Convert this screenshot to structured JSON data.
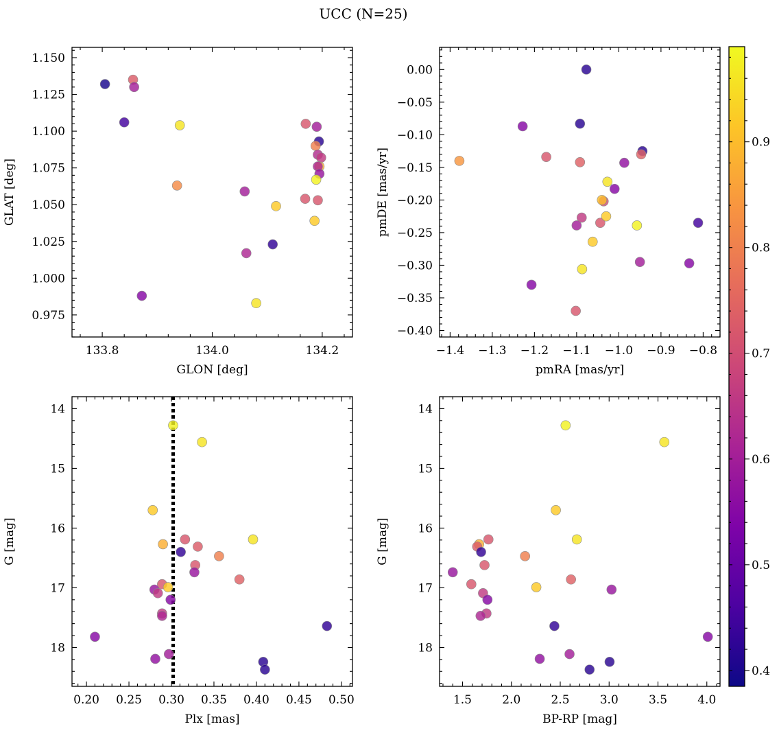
{
  "figure": {
    "title": "UCC (N=25)",
    "colorbar": {
      "colormap": "plasma",
      "range": [
        0.385,
        0.99
      ],
      "ticks": [
        "0.4",
        "0.5",
        "0.6",
        "0.7",
        "0.8",
        "0.9"
      ],
      "tick_values": [
        0.4,
        0.5,
        0.6,
        0.7,
        0.8,
        0.9
      ]
    }
  },
  "chart_data": [
    {
      "type": "scatter",
      "xlabel": "GLON [deg]",
      "ylabel": "GLAT [deg]",
      "xlim": [
        133.745,
        134.255
      ],
      "ylim": [
        0.96,
        1.157
      ],
      "xticks": [
        "133.8",
        "134.0",
        "134.2"
      ],
      "xtick_values": [
        133.8,
        134.0,
        134.2
      ],
      "yticks": [
        "0.975",
        "1.000",
        "1.025",
        "1.050",
        "1.075",
        "1.100",
        "1.125",
        "1.150"
      ],
      "ytick_values": [
        0.975,
        1.0,
        1.025,
        1.05,
        1.075,
        1.1,
        1.125,
        1.15
      ],
      "invert_y": false,
      "points": [
        {
          "x": 133.805,
          "y": 1.132,
          "c": 0.4
        },
        {
          "x": 133.856,
          "y": 1.135,
          "c": 0.73
        },
        {
          "x": 133.858,
          "y": 1.13,
          "c": 0.6
        },
        {
          "x": 133.84,
          "y": 1.106,
          "c": 0.45
        },
        {
          "x": 133.941,
          "y": 1.104,
          "c": 0.96
        },
        {
          "x": 133.936,
          "y": 1.063,
          "c": 0.82
        },
        {
          "x": 133.872,
          "y": 0.988,
          "c": 0.55
        },
        {
          "x": 134.059,
          "y": 1.059,
          "c": 0.6
        },
        {
          "x": 134.062,
          "y": 1.017,
          "c": 0.62
        },
        {
          "x": 134.11,
          "y": 1.023,
          "c": 0.43
        },
        {
          "x": 134.116,
          "y": 1.049,
          "c": 0.92
        },
        {
          "x": 134.08,
          "y": 0.983,
          "c": 0.96
        },
        {
          "x": 134.17,
          "y": 1.105,
          "c": 0.72
        },
        {
          "x": 134.19,
          "y": 1.103,
          "c": 0.6
        },
        {
          "x": 134.194,
          "y": 1.093,
          "c": 0.42
        },
        {
          "x": 134.188,
          "y": 1.09,
          "c": 0.8
        },
        {
          "x": 134.192,
          "y": 1.084,
          "c": 0.63
        },
        {
          "x": 134.198,
          "y": 1.082,
          "c": 0.66
        },
        {
          "x": 134.195,
          "y": 1.076,
          "c": 0.88
        },
        {
          "x": 134.192,
          "y": 1.076,
          "c": 0.62
        },
        {
          "x": 134.195,
          "y": 1.071,
          "c": 0.58
        },
        {
          "x": 134.189,
          "y": 1.067,
          "c": 0.98
        },
        {
          "x": 134.169,
          "y": 1.054,
          "c": 0.72
        },
        {
          "x": 134.192,
          "y": 1.053,
          "c": 0.72
        },
        {
          "x": 134.186,
          "y": 1.039,
          "c": 0.92
        }
      ]
    },
    {
      "type": "scatter",
      "xlabel": "pmRA [mas/yr]",
      "ylabel": "pmDE [mas/yr]",
      "xlim": [
        -1.425,
        -0.76
      ],
      "ylim": [
        -0.41,
        0.034
      ],
      "xticks": [
        "−1.4",
        "−1.3",
        "−1.2",
        "−1.1",
        "−1.0",
        "−0.9",
        "−0.8"
      ],
      "xtick_values": [
        -1.4,
        -1.3,
        -1.2,
        -1.1,
        -1.0,
        -0.9,
        -0.8
      ],
      "yticks": [
        "0.00",
        "−0.05",
        "−0.10",
        "−0.15",
        "−0.20",
        "−0.25",
        "−0.30",
        "−0.35",
        "−0.40"
      ],
      "ytick_values": [
        0.0,
        -0.05,
        -0.1,
        -0.15,
        -0.2,
        -0.25,
        -0.3,
        -0.35,
        -0.4
      ],
      "invert_y": false,
      "points": [
        {
          "x": -1.077,
          "y": 0.0,
          "c": 0.42
        },
        {
          "x": -1.228,
          "y": -0.087,
          "c": 0.55
        },
        {
          "x": -1.092,
          "y": -0.083,
          "c": 0.42
        },
        {
          "x": -0.944,
          "y": -0.125,
          "c": 0.42
        },
        {
          "x": -0.947,
          "y": -0.13,
          "c": 0.74
        },
        {
          "x": -1.378,
          "y": -0.14,
          "c": 0.84
        },
        {
          "x": -1.172,
          "y": -0.134,
          "c": 0.72
        },
        {
          "x": -1.092,
          "y": -0.142,
          "c": 0.74
        },
        {
          "x": -0.987,
          "y": -0.143,
          "c": 0.57
        },
        {
          "x": -1.027,
          "y": -0.172,
          "c": 0.96
        },
        {
          "x": -1.01,
          "y": -0.183,
          "c": 0.55
        },
        {
          "x": -1.036,
          "y": -0.202,
          "c": 0.7
        },
        {
          "x": -1.04,
          "y": -0.2,
          "c": 0.9
        },
        {
          "x": -1.088,
          "y": -0.227,
          "c": 0.66
        },
        {
          "x": -1.044,
          "y": -0.235,
          "c": 0.72
        },
        {
          "x": -1.1,
          "y": -0.239,
          "c": 0.6
        },
        {
          "x": -1.03,
          "y": -0.225,
          "c": 0.92
        },
        {
          "x": -0.957,
          "y": -0.239,
          "c": 0.98
        },
        {
          "x": -0.812,
          "y": -0.235,
          "c": 0.45
        },
        {
          "x": -1.062,
          "y": -0.264,
          "c": 0.92
        },
        {
          "x": -0.95,
          "y": -0.295,
          "c": 0.6
        },
        {
          "x": -0.833,
          "y": -0.297,
          "c": 0.55
        },
        {
          "x": -1.087,
          "y": -0.306,
          "c": 0.96
        },
        {
          "x": -1.207,
          "y": -0.33,
          "c": 0.55
        },
        {
          "x": -1.102,
          "y": -0.37,
          "c": 0.72
        }
      ]
    },
    {
      "type": "scatter",
      "xlabel": "Plx [mas]",
      "ylabel": "G [mag]",
      "xlim": [
        0.183,
        0.513
      ],
      "ylim": [
        13.8,
        18.65
      ],
      "xticks": [
        "0.20",
        "0.25",
        "0.30",
        "0.35",
        "0.40",
        "0.45",
        "0.50"
      ],
      "xtick_values": [
        0.2,
        0.25,
        0.3,
        0.35,
        0.4,
        0.45,
        0.5
      ],
      "yticks": [
        "14",
        "15",
        "16",
        "17",
        "18"
      ],
      "ytick_values": [
        14,
        15,
        16,
        17,
        18
      ],
      "invert_y": true,
      "vline": {
        "x": 0.302,
        "style": "dotted",
        "color": "#000000"
      },
      "points": [
        {
          "x": 0.302,
          "y": 14.28,
          "c": 0.98
        },
        {
          "x": 0.336,
          "y": 14.56,
          "c": 0.96
        },
        {
          "x": 0.278,
          "y": 15.7,
          "c": 0.92
        },
        {
          "x": 0.396,
          "y": 16.19,
          "c": 0.96
        },
        {
          "x": 0.316,
          "y": 16.19,
          "c": 0.72
        },
        {
          "x": 0.29,
          "y": 16.27,
          "c": 0.88
        },
        {
          "x": 0.331,
          "y": 16.31,
          "c": 0.73
        },
        {
          "x": 0.311,
          "y": 16.4,
          "c": 0.43
        },
        {
          "x": 0.356,
          "y": 16.47,
          "c": 0.8
        },
        {
          "x": 0.328,
          "y": 16.62,
          "c": 0.72
        },
        {
          "x": 0.327,
          "y": 16.74,
          "c": 0.58
        },
        {
          "x": 0.38,
          "y": 16.86,
          "c": 0.74
        },
        {
          "x": 0.289,
          "y": 16.94,
          "c": 0.72
        },
        {
          "x": 0.296,
          "y": 16.99,
          "c": 0.92
        },
        {
          "x": 0.28,
          "y": 17.03,
          "c": 0.58
        },
        {
          "x": 0.284,
          "y": 17.09,
          "c": 0.66
        },
        {
          "x": 0.299,
          "y": 17.2,
          "c": 0.55
        },
        {
          "x": 0.289,
          "y": 17.43,
          "c": 0.66
        },
        {
          "x": 0.289,
          "y": 17.47,
          "c": 0.62
        },
        {
          "x": 0.483,
          "y": 17.64,
          "c": 0.43
        },
        {
          "x": 0.21,
          "y": 17.82,
          "c": 0.55
        },
        {
          "x": 0.297,
          "y": 18.11,
          "c": 0.6
        },
        {
          "x": 0.281,
          "y": 18.19,
          "c": 0.57
        },
        {
          "x": 0.408,
          "y": 18.24,
          "c": 0.42
        },
        {
          "x": 0.41,
          "y": 18.37,
          "c": 0.42
        }
      ]
    },
    {
      "type": "scatter",
      "xlabel": "BP-RP [mag]",
      "ylabel": "G [mag]",
      "xlim": [
        1.265,
        4.135
      ],
      "ylim": [
        13.8,
        18.65
      ],
      "xticks": [
        "1.5",
        "2.0",
        "2.5",
        "3.0",
        "3.5",
        "4.0"
      ],
      "xtick_values": [
        1.5,
        2.0,
        2.5,
        3.0,
        3.5,
        4.0
      ],
      "yticks": [
        "14",
        "15",
        "16",
        "17",
        "18"
      ],
      "ytick_values": [
        14,
        15,
        16,
        17,
        18
      ],
      "invert_y": true,
      "points": [
        {
          "x": 2.555,
          "y": 14.28,
          "c": 0.98
        },
        {
          "x": 3.565,
          "y": 14.56,
          "c": 0.96
        },
        {
          "x": 2.455,
          "y": 15.7,
          "c": 0.92
        },
        {
          "x": 2.67,
          "y": 16.19,
          "c": 0.96
        },
        {
          "x": 1.765,
          "y": 16.19,
          "c": 0.72
        },
        {
          "x": 1.67,
          "y": 16.27,
          "c": 0.88
        },
        {
          "x": 1.65,
          "y": 16.31,
          "c": 0.73
        },
        {
          "x": 1.69,
          "y": 16.4,
          "c": 0.43
        },
        {
          "x": 2.14,
          "y": 16.47,
          "c": 0.8
        },
        {
          "x": 1.725,
          "y": 16.62,
          "c": 0.72
        },
        {
          "x": 1.4,
          "y": 16.74,
          "c": 0.58
        },
        {
          "x": 2.61,
          "y": 16.86,
          "c": 0.74
        },
        {
          "x": 1.59,
          "y": 16.94,
          "c": 0.72
        },
        {
          "x": 2.255,
          "y": 16.99,
          "c": 0.92
        },
        {
          "x": 3.025,
          "y": 17.03,
          "c": 0.58
        },
        {
          "x": 1.71,
          "y": 17.09,
          "c": 0.66
        },
        {
          "x": 1.755,
          "y": 17.2,
          "c": 0.55
        },
        {
          "x": 1.745,
          "y": 17.43,
          "c": 0.66
        },
        {
          "x": 1.685,
          "y": 17.47,
          "c": 0.62
        },
        {
          "x": 2.44,
          "y": 17.64,
          "c": 0.43
        },
        {
          "x": 4.01,
          "y": 17.82,
          "c": 0.55
        },
        {
          "x": 2.595,
          "y": 18.11,
          "c": 0.6
        },
        {
          "x": 2.29,
          "y": 18.19,
          "c": 0.57
        },
        {
          "x": 3.005,
          "y": 18.24,
          "c": 0.42
        },
        {
          "x": 2.8,
          "y": 18.37,
          "c": 0.42
        }
      ]
    }
  ]
}
